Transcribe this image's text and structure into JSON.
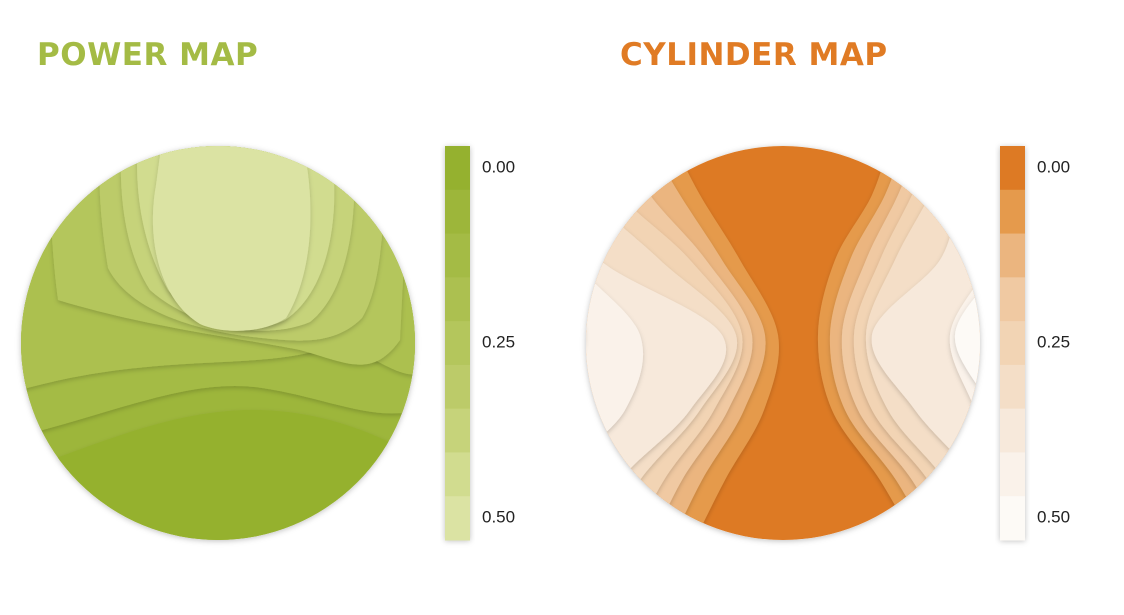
{
  "chart_data": [
    {
      "type": "contour",
      "title": "POWER MAP",
      "title_color": "#a4bb45",
      "level_colors": [
        "#95b12f",
        "#9db63a",
        "#a4bb45",
        "#acc050",
        "#b4c65c",
        "#bccb69",
        "#c6d37a",
        "#d1dc8f",
        "#dbe3a3"
      ],
      "clim": [
        0,
        0.5
      ],
      "cticks": [
        {
          "value": 0,
          "label": "0.00"
        },
        {
          "value": 0.25,
          "label": "0.25"
        },
        {
          "value": 0.5,
          "label": "0.50"
        }
      ]
    },
    {
      "type": "contour",
      "title": "CYLINDER MAP",
      "title_color": "#e07b24",
      "level_colors": [
        "#dd7a24",
        "#e59a4c",
        "#ebb57f",
        "#f0c9a2",
        "#f2d4b4",
        "#f4dec7",
        "#f7e9db",
        "#faf2ea",
        "#fdfaf6"
      ],
      "clim": [
        0,
        0.5
      ],
      "cticks": [
        {
          "value": 0,
          "label": "0.00"
        },
        {
          "value": 0.25,
          "label": "0.25"
        },
        {
          "value": 0.5,
          "label": "0.50"
        }
      ]
    }
  ]
}
